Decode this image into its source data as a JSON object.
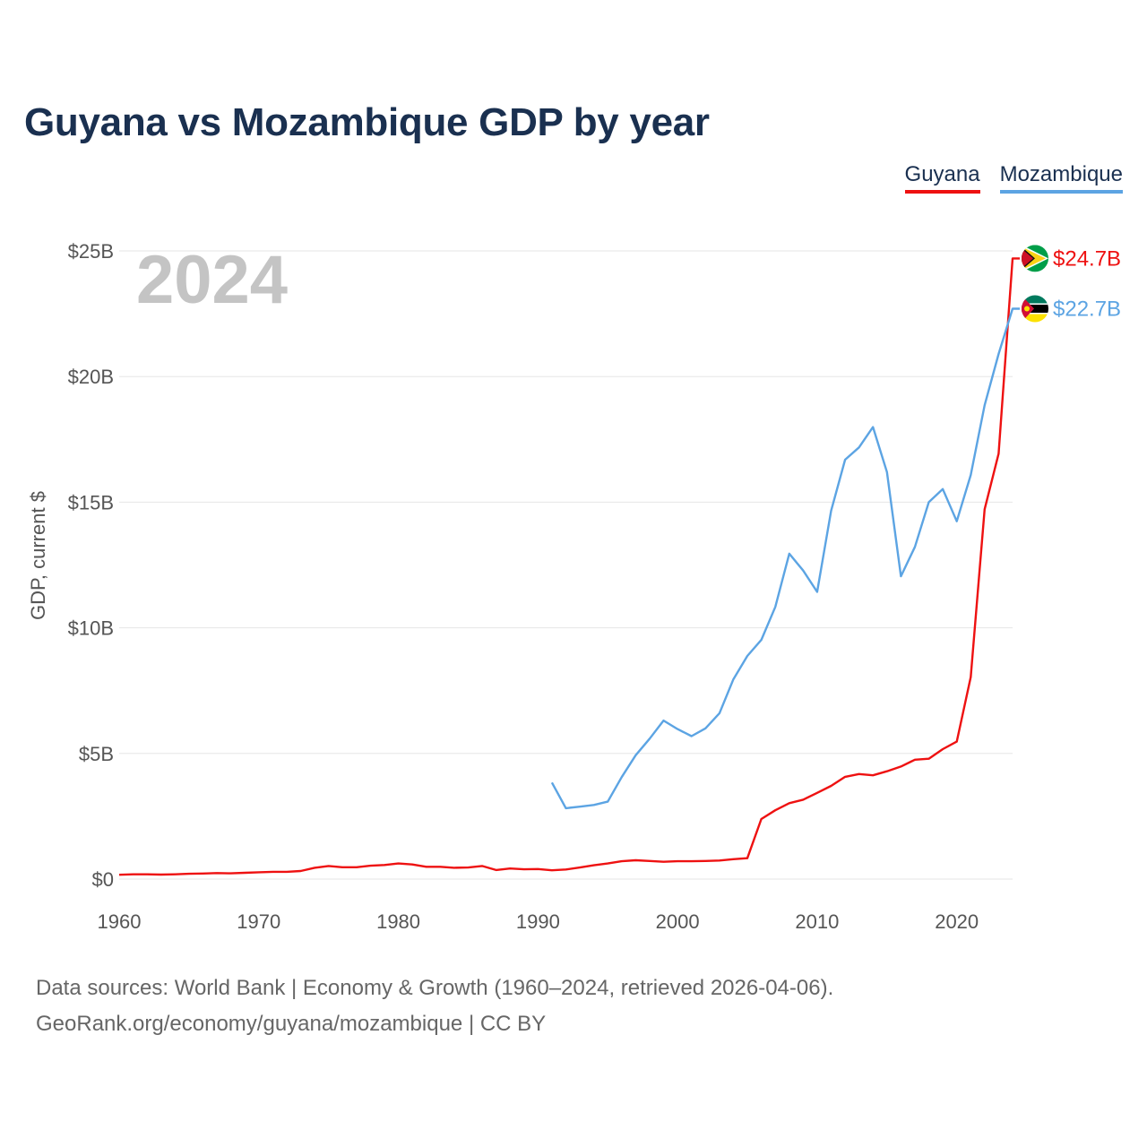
{
  "title": "Guyana vs Mozambique GDP by year",
  "footer": {
    "line1": "Data sources: World Bank | Economy & Growth (1960–2024, retrieved 2026-04-06).",
    "line2": "GeoRank.org/economy/guyana/mozambique | CC BY"
  },
  "chart_data": {
    "type": "line",
    "title": "Guyana vs Mozambique GDP by year",
    "year_label": "2024",
    "xlabel": "",
    "ylabel": "GDP, current $",
    "xlim": [
      1960,
      2024
    ],
    "ylim": [
      0,
      25
    ],
    "y_unit": "billion USD",
    "x_ticks": [
      1960,
      1970,
      1980,
      1990,
      2000,
      2010,
      2020
    ],
    "x_tick_labels": [
      "1960",
      "1970",
      "1980",
      "1990",
      "2000",
      "2010",
      "2020"
    ],
    "y_ticks": [
      0,
      5,
      10,
      15,
      20,
      25
    ],
    "y_tick_labels": [
      "$0",
      "$5B",
      "$10B",
      "$15B",
      "$20B",
      "$25B"
    ],
    "grid": true,
    "legend_position": "top-right",
    "series": [
      {
        "name": "Guyana",
        "color": "#ee1111",
        "flag_icon": "guyana-flag-icon",
        "end_label": "$24.7B",
        "x": [
          1960,
          1961,
          1962,
          1963,
          1964,
          1965,
          1966,
          1967,
          1968,
          1969,
          1970,
          1971,
          1972,
          1973,
          1974,
          1975,
          1976,
          1977,
          1978,
          1979,
          1980,
          1981,
          1982,
          1983,
          1984,
          1985,
          1986,
          1987,
          1988,
          1989,
          1990,
          1991,
          1992,
          1993,
          1994,
          1995,
          1996,
          1997,
          1998,
          1999,
          2000,
          2001,
          2002,
          2003,
          2004,
          2005,
          2006,
          2007,
          2008,
          2009,
          2010,
          2011,
          2012,
          2013,
          2014,
          2015,
          2016,
          2017,
          2018,
          2019,
          2020,
          2021,
          2022,
          2023,
          2024
        ],
        "values": [
          0.17,
          0.19,
          0.19,
          0.18,
          0.19,
          0.21,
          0.22,
          0.24,
          0.23,
          0.25,
          0.27,
          0.29,
          0.29,
          0.32,
          0.45,
          0.52,
          0.47,
          0.47,
          0.53,
          0.56,
          0.62,
          0.58,
          0.49,
          0.49,
          0.45,
          0.46,
          0.52,
          0.36,
          0.42,
          0.39,
          0.4,
          0.35,
          0.38,
          0.46,
          0.55,
          0.62,
          0.71,
          0.75,
          0.72,
          0.69,
          0.71,
          0.71,
          0.72,
          0.74,
          0.79,
          0.83,
          2.39,
          2.74,
          3.02,
          3.16,
          3.43,
          3.71,
          4.07,
          4.18,
          4.13,
          4.29,
          4.48,
          4.75,
          4.79,
          5.17,
          5.47,
          8.04,
          14.72,
          16.93,
          24.7
        ]
      },
      {
        "name": "Mozambique",
        "color": "#5ca4e3",
        "flag_icon": "mozambique-flag-icon",
        "end_label": "$22.7B",
        "x": [
          1991,
          1992,
          1993,
          1994,
          1995,
          1996,
          1997,
          1998,
          1999,
          2000,
          2001,
          2002,
          2003,
          2004,
          2005,
          2006,
          2007,
          2008,
          2009,
          2010,
          2011,
          2012,
          2013,
          2014,
          2015,
          2016,
          2017,
          2018,
          2019,
          2020,
          2021,
          2022,
          2023,
          2024
        ],
        "values": [
          3.84,
          2.82,
          2.88,
          2.95,
          3.08,
          4.06,
          4.93,
          5.59,
          6.31,
          5.97,
          5.69,
          6.0,
          6.6,
          7.95,
          8.88,
          9.52,
          10.83,
          12.95,
          12.28,
          11.43,
          14.66,
          16.69,
          17.18,
          17.99,
          16.2,
          12.05,
          13.22,
          15.0,
          15.52,
          14.24,
          16.08,
          18.86,
          20.9,
          22.7
        ]
      }
    ]
  }
}
